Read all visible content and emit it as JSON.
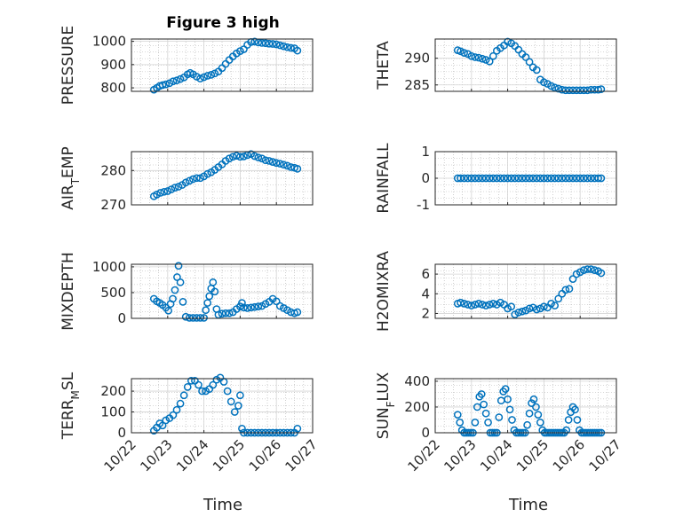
{
  "figure": {
    "title": "Figure 3 high",
    "xlabel": "Time"
  },
  "colors": {
    "marker": "#0072BD",
    "grid": "#b0b0b0",
    "axis": "#262626"
  },
  "chart_data": [
    {
      "type": "scatter",
      "ylabel": "PRESSURE",
      "yticks": [
        "800",
        "900",
        "1000"
      ],
      "ylim": [
        785,
        1010
      ],
      "xlim": [
        0,
        5
      ],
      "xticks": [],
      "x": [
        0.62,
        0.7,
        0.78,
        0.86,
        0.95,
        1.05,
        1.15,
        1.25,
        1.35,
        1.45,
        1.55,
        1.62,
        1.7,
        1.8,
        1.9,
        2.0,
        2.1,
        2.2,
        2.3,
        2.4,
        2.5,
        2.6,
        2.7,
        2.8,
        2.9,
        3.0,
        3.1,
        3.2,
        3.3,
        3.4,
        3.5,
        3.6,
        3.7,
        3.8,
        3.9,
        4.0,
        4.1,
        4.2,
        4.3,
        4.4,
        4.5,
        4.58
      ],
      "y": [
        792,
        800,
        808,
        812,
        815,
        820,
        828,
        832,
        838,
        845,
        858,
        864,
        858,
        848,
        840,
        846,
        852,
        856,
        862,
        870,
        885,
        903,
        920,
        935,
        948,
        958,
        966,
        985,
        997,
        999,
        995,
        993,
        992,
        990,
        989,
        987,
        983,
        979,
        975,
        972,
        970,
        960
      ]
    },
    {
      "type": "scatter",
      "ylabel": "THETA",
      "yticks": [
        "285",
        "290"
      ],
      "ylim": [
        283.8,
        293.6
      ],
      "xlim": [
        0,
        5
      ],
      "xticks": [],
      "x": [
        0.62,
        0.7,
        0.8,
        0.9,
        1.0,
        1.1,
        1.2,
        1.3,
        1.4,
        1.5,
        1.6,
        1.7,
        1.8,
        1.9,
        2.0,
        2.1,
        2.2,
        2.3,
        2.4,
        2.5,
        2.6,
        2.7,
        2.8,
        2.9,
        3.0,
        3.1,
        3.2,
        3.3,
        3.4,
        3.5,
        3.6,
        3.7,
        3.8,
        3.9,
        4.0,
        4.1,
        4.2,
        4.3,
        4.4,
        4.5,
        4.58
      ],
      "y": [
        291.5,
        291.3,
        291.0,
        290.8,
        290.4,
        290.2,
        290.1,
        289.9,
        289.7,
        289.4,
        290.4,
        291.4,
        291.9,
        292.4,
        293.1,
        292.8,
        292.3,
        291.6,
        290.8,
        290.2,
        289.3,
        288.3,
        287.8,
        286.0,
        285.5,
        285.2,
        284.8,
        284.5,
        284.3,
        284.1,
        284.0,
        284.0,
        284.0,
        284.0,
        284.0,
        284.0,
        284.0,
        284.1,
        284.1,
        284.1,
        284.2
      ]
    },
    {
      "type": "scatter",
      "ylabel": "AIR_TEMP",
      "yticks": [
        "270",
        "280"
      ],
      "ylim": [
        270,
        285.5
      ],
      "xlim": [
        0,
        5
      ],
      "xticks": [],
      "x": [
        0.62,
        0.7,
        0.8,
        0.9,
        1.0,
        1.1,
        1.2,
        1.3,
        1.4,
        1.5,
        1.6,
        1.7,
        1.8,
        1.9,
        2.0,
        2.1,
        2.2,
        2.3,
        2.4,
        2.5,
        2.6,
        2.7,
        2.8,
        2.9,
        3.0,
        3.1,
        3.2,
        3.3,
        3.4,
        3.5,
        3.6,
        3.7,
        3.8,
        3.9,
        4.0,
        4.1,
        4.2,
        4.3,
        4.4,
        4.5,
        4.58
      ],
      "y": [
        272.5,
        273.0,
        273.5,
        273.8,
        274.0,
        274.5,
        275.0,
        275.3,
        275.8,
        276.5,
        277.0,
        277.5,
        277.8,
        277.8,
        278.3,
        279.0,
        279.5,
        280.2,
        281.0,
        281.8,
        282.8,
        283.5,
        284.0,
        284.3,
        284.0,
        284.1,
        284.5,
        284.8,
        284.2,
        283.8,
        283.5,
        283.0,
        282.8,
        282.5,
        282.2,
        282.0,
        281.7,
        281.4,
        281.0,
        280.8,
        280.5
      ]
    },
    {
      "type": "scatter",
      "ylabel": "RAINFALL",
      "yticks": [
        "-1",
        "0",
        "1"
      ],
      "ylim": [
        -1,
        1
      ],
      "xlim": [
        0,
        5
      ],
      "xticks": [],
      "x": [
        0.62,
        0.7,
        0.8,
        0.9,
        1.0,
        1.1,
        1.2,
        1.3,
        1.4,
        1.5,
        1.6,
        1.7,
        1.8,
        1.9,
        2.0,
        2.1,
        2.2,
        2.3,
        2.4,
        2.5,
        2.6,
        2.7,
        2.8,
        2.9,
        3.0,
        3.1,
        3.2,
        3.3,
        3.4,
        3.5,
        3.6,
        3.7,
        3.8,
        3.9,
        4.0,
        4.1,
        4.2,
        4.3,
        4.4,
        4.5,
        4.58
      ],
      "y": [
        0,
        0,
        0,
        0,
        0,
        0,
        0,
        0,
        0,
        0,
        0,
        0,
        0,
        0,
        0,
        0,
        0,
        0,
        0,
        0,
        0,
        0,
        0,
        0,
        0,
        0,
        0,
        0,
        0,
        0,
        0,
        0,
        0,
        0,
        0,
        0,
        0,
        0,
        0,
        0,
        0
      ]
    },
    {
      "type": "scatter",
      "ylabel": "MIXDEPTH",
      "yticks": [
        "0",
        "500",
        "1000"
      ],
      "ylim": [
        0,
        1050
      ],
      "xlim": [
        0,
        5
      ],
      "xticks": [],
      "x": [
        0.62,
        0.7,
        0.78,
        0.86,
        0.95,
        1.02,
        1.08,
        1.14,
        1.2,
        1.26,
        1.3,
        1.35,
        1.42,
        1.5,
        1.6,
        1.7,
        1.8,
        1.9,
        2.0,
        2.05,
        2.1,
        2.15,
        2.2,
        2.25,
        2.3,
        2.35,
        2.4,
        2.5,
        2.6,
        2.7,
        2.8,
        2.9,
        3.0,
        3.05,
        3.1,
        3.2,
        3.3,
        3.4,
        3.5,
        3.6,
        3.7,
        3.8,
        3.9,
        4.0,
        4.1,
        4.2,
        4.3,
        4.4,
        4.5,
        4.58
      ],
      "y": [
        380,
        330,
        300,
        260,
        210,
        150,
        280,
        380,
        550,
        800,
        1020,
        700,
        320,
        30,
        10,
        10,
        10,
        10,
        10,
        160,
        300,
        430,
        580,
        700,
        520,
        180,
        70,
        90,
        100,
        100,
        120,
        180,
        230,
        300,
        210,
        200,
        210,
        220,
        230,
        240,
        280,
        320,
        380,
        330,
        240,
        200,
        160,
        120,
        100,
        120
      ]
    },
    {
      "type": "scatter",
      "ylabel": "H2OMIXRA",
      "yticks": [
        "2",
        "4",
        "6"
      ],
      "ylim": [
        1.5,
        7
      ],
      "xlim": [
        0,
        5
      ],
      "xticks": [],
      "x": [
        0.62,
        0.7,
        0.8,
        0.9,
        1.0,
        1.1,
        1.2,
        1.3,
        1.4,
        1.5,
        1.6,
        1.7,
        1.8,
        1.9,
        2.0,
        2.1,
        2.2,
        2.3,
        2.4,
        2.5,
        2.6,
        2.7,
        2.8,
        2.9,
        3.0,
        3.1,
        3.2,
        3.3,
        3.4,
        3.5,
        3.6,
        3.7,
        3.8,
        3.9,
        4.0,
        4.1,
        4.2,
        4.3,
        4.4,
        4.5,
        4.58
      ],
      "y": [
        3.0,
        3.1,
        3.0,
        2.9,
        2.8,
        2.9,
        3.0,
        2.9,
        2.8,
        2.9,
        3.0,
        2.9,
        3.1,
        2.9,
        2.5,
        2.7,
        1.9,
        2.1,
        2.2,
        2.3,
        2.5,
        2.6,
        2.4,
        2.5,
        2.7,
        2.6,
        3.0,
        2.8,
        3.5,
        4.0,
        4.4,
        4.5,
        5.5,
        6.0,
        6.2,
        6.4,
        6.5,
        6.5,
        6.4,
        6.3,
        6.1
      ]
    },
    {
      "type": "scatter",
      "ylabel": "TERR_MSL",
      "yticks": [
        "0",
        "100",
        "200"
      ],
      "ylim": [
        0,
        260
      ],
      "xlim": [
        0,
        5
      ],
      "xticks": [
        "10/22",
        "10/23",
        "10/24",
        "10/25",
        "10/26",
        "10/27"
      ],
      "x": [
        0.62,
        0.7,
        0.78,
        0.86,
        0.95,
        1.05,
        1.15,
        1.25,
        1.35,
        1.45,
        1.55,
        1.65,
        1.75,
        1.85,
        1.95,
        2.05,
        2.15,
        2.25,
        2.35,
        2.45,
        2.55,
        2.65,
        2.75,
        2.85,
        2.95,
        3.0,
        3.05,
        3.1,
        3.2,
        3.3,
        3.4,
        3.5,
        3.6,
        3.7,
        3.8,
        3.9,
        4.0,
        4.1,
        4.2,
        4.3,
        4.4,
        4.5,
        4.58
      ],
      "y": [
        10,
        25,
        45,
        35,
        60,
        70,
        85,
        110,
        140,
        180,
        220,
        250,
        250,
        230,
        200,
        200,
        210,
        230,
        255,
        265,
        245,
        200,
        150,
        100,
        130,
        180,
        20,
        0,
        0,
        0,
        0,
        0,
        0,
        0,
        0,
        0,
        0,
        0,
        0,
        0,
        0,
        0,
        20
      ]
    },
    {
      "type": "scatter",
      "ylabel": "SUN_FLUX",
      "yticks": [
        "0",
        "200",
        "400"
      ],
      "ylim": [
        0,
        420
      ],
      "xlim": [
        0,
        5
      ],
      "xticks": [
        "10/22",
        "10/23",
        "10/24",
        "10/25",
        "10/26",
        "10/27"
      ],
      "x": [
        0.62,
        0.68,
        0.74,
        0.8,
        0.86,
        0.92,
        0.98,
        1.04,
        1.1,
        1.16,
        1.22,
        1.28,
        1.34,
        1.4,
        1.46,
        1.52,
        1.58,
        1.64,
        1.7,
        1.76,
        1.82,
        1.88,
        1.94,
        2.0,
        2.06,
        2.12,
        2.18,
        2.24,
        2.3,
        2.36,
        2.42,
        2.48,
        2.54,
        2.6,
        2.66,
        2.72,
        2.78,
        2.84,
        2.9,
        2.96,
        3.02,
        3.08,
        3.14,
        3.2,
        3.26,
        3.32,
        3.38,
        3.44,
        3.5,
        3.56,
        3.62,
        3.68,
        3.74,
        3.8,
        3.86,
        3.92,
        3.98,
        4.04,
        4.1,
        4.16,
        4.22,
        4.28,
        4.34,
        4.4,
        4.46,
        4.52,
        4.58
      ],
      "y": [
        140,
        80,
        20,
        0,
        0,
        0,
        0,
        0,
        80,
        200,
        280,
        300,
        220,
        150,
        80,
        0,
        0,
        0,
        0,
        120,
        250,
        320,
        340,
        260,
        180,
        100,
        20,
        0,
        0,
        0,
        0,
        0,
        60,
        150,
        230,
        260,
        200,
        140,
        80,
        20,
        0,
        0,
        0,
        0,
        0,
        0,
        0,
        0,
        0,
        0,
        20,
        100,
        160,
        200,
        180,
        100,
        20,
        0,
        0,
        0,
        0,
        0,
        0,
        0,
        0,
        0,
        0
      ]
    }
  ]
}
